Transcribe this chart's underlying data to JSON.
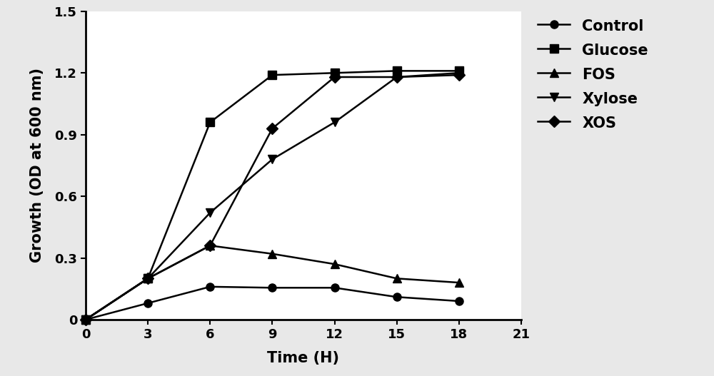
{
  "time": [
    0,
    3,
    6,
    9,
    12,
    15,
    18
  ],
  "control": [
    0.0,
    0.08,
    0.16,
    0.155,
    0.155,
    0.11,
    0.09
  ],
  "glucose": [
    0.0,
    0.2,
    0.96,
    1.19,
    1.2,
    1.21,
    1.21
  ],
  "fos": [
    0.0,
    0.2,
    0.36,
    0.32,
    0.27,
    0.2,
    0.18
  ],
  "xylose": [
    0.0,
    0.2,
    0.52,
    0.78,
    0.96,
    1.18,
    1.2
  ],
  "xos": [
    0.0,
    0.2,
    0.36,
    0.93,
    1.18,
    1.18,
    1.19
  ],
  "xlabel": "Time (H)",
  "ylabel": "Growth (OD at 600 nm)",
  "xlim": [
    0,
    21
  ],
  "ylim": [
    0.0,
    1.5
  ],
  "xticks": [
    0,
    3,
    6,
    9,
    12,
    15,
    18,
    21
  ],
  "yticks": [
    0.0,
    0.3,
    0.6,
    0.9,
    1.2,
    1.5
  ],
  "legend_labels": [
    "Control",
    "Glucose",
    "FOS",
    "Xylose",
    "XOS"
  ],
  "line_color": "#000000",
  "bg_color": "#e8e8e8",
  "plot_bg_color": "#ffffff",
  "marker_control": "o",
  "marker_glucose": "s",
  "marker_fos": "^",
  "marker_xylose": "v",
  "marker_xos": "D",
  "markersize": 8,
  "linewidth": 1.8,
  "fontsize_label": 15,
  "fontsize_tick": 13,
  "fontsize_legend": 15
}
